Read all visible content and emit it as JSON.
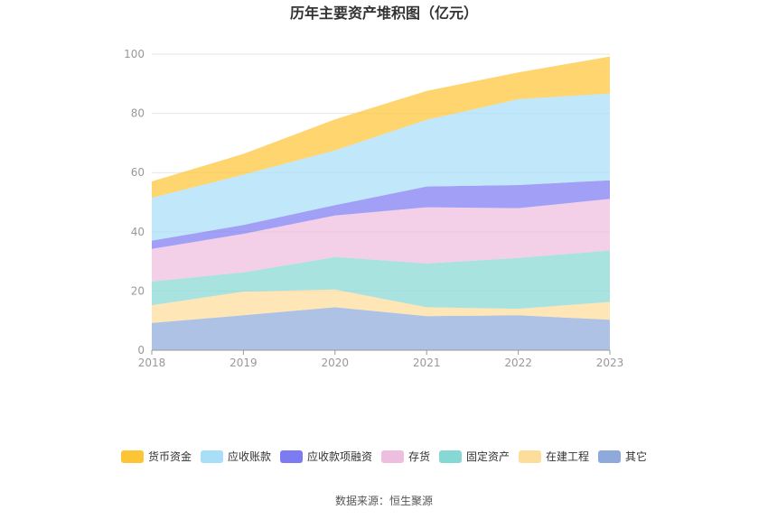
{
  "chart_data": {
    "type": "area",
    "stacked": true,
    "title": "历年主要资产堆积图（亿元）",
    "x": [
      "2018",
      "2019",
      "2020",
      "2021",
      "2022",
      "2023"
    ],
    "ylim": [
      0,
      100
    ],
    "yticks": [
      "0",
      "20",
      "40",
      "60",
      "80",
      "100"
    ],
    "grid": true,
    "legend_position": "bottom",
    "series": [
      {
        "name": "其它",
        "color": "#8eaadb",
        "values": [
          9.2,
          11.8,
          14.5,
          11.5,
          11.8,
          10.3
        ]
      },
      {
        "name": "在建工程",
        "color": "#fddd9a",
        "values": [
          6.0,
          8.0,
          6.0,
          3.0,
          2.2,
          6.0
        ]
      },
      {
        "name": "固定资产",
        "color": "#86d8d4",
        "values": [
          8.0,
          6.5,
          11.0,
          14.8,
          17.2,
          17.4
        ]
      },
      {
        "name": "存货",
        "color": "#eebedf",
        "values": [
          11.0,
          13.0,
          14.0,
          19.0,
          16.8,
          17.4
        ]
      },
      {
        "name": "应收款项融资",
        "color": "#7d7bf2",
        "values": [
          2.8,
          3.0,
          3.5,
          7.0,
          7.8,
          6.3
        ]
      },
      {
        "name": "应收账款",
        "color": "#a8def8",
        "values": [
          14.5,
          17.0,
          18.5,
          22.5,
          29.0,
          29.3
        ]
      },
      {
        "name": "货币资金",
        "color": "#fdc536",
        "values": [
          5.5,
          7.0,
          10.5,
          9.8,
          9.0,
          12.5
        ]
      }
    ],
    "legend_order": [
      "货币资金",
      "应收账款",
      "应收款项融资",
      "存货",
      "固定资产",
      "在建工程",
      "其它"
    ],
    "source": "数据来源：恒生聚源"
  }
}
